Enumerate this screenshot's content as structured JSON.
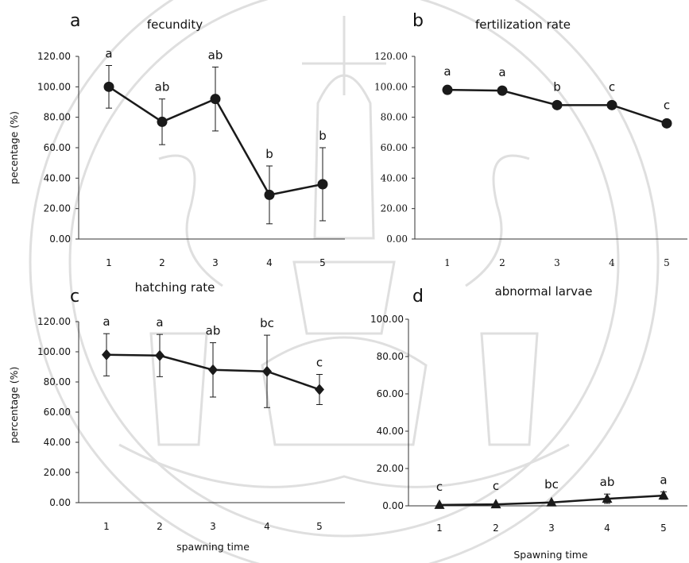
{
  "colors": {
    "line": "#1a1a1a",
    "marker": "#1a1a1a",
    "axis": "#333333",
    "watermark": "#d6d6d6"
  },
  "chart_data": [
    {
      "type": "line",
      "panel_letter": "a",
      "title": "fecundity",
      "ylabel": "pecentage (%)",
      "xlabel": "",
      "ylim": [
        0,
        120
      ],
      "yticks": [
        "120.00",
        "100.00",
        "80.00",
        "60.00",
        "40.00",
        "20.00",
        "0.00"
      ],
      "categories": [
        "1",
        "2",
        "3",
        "4",
        "5"
      ],
      "marker": "circle",
      "series": [
        {
          "values": [
            100,
            77,
            92,
            29,
            36
          ],
          "errors": [
            14,
            15,
            21,
            19,
            24
          ],
          "labels": [
            "a",
            "ab",
            "ab",
            "b",
            "b"
          ]
        }
      ],
      "grid": false
    },
    {
      "type": "line",
      "panel_letter": "b",
      "title": "fertilization rate",
      "ylabel": "",
      "xlabel": "",
      "ylim": [
        0,
        120
      ],
      "yticks": [
        "120.00",
        "100.00",
        "80.00",
        "60.00",
        "40.00",
        "20.00",
        "0.00"
      ],
      "categories": [
        "1",
        "2",
        "3",
        "4",
        "5"
      ],
      "marker": "circle",
      "series": [
        {
          "values": [
            98,
            97.5,
            88,
            88,
            76
          ],
          "errors": [
            0,
            0,
            0,
            0,
            0
          ],
          "labels": [
            "a",
            "a",
            "b",
            "c",
            "c"
          ]
        }
      ],
      "grid": false
    },
    {
      "type": "line",
      "panel_letter": "c",
      "title": "hatching rate",
      "ylabel": "percentage (%)",
      "xlabel": "spawning time",
      "ylim": [
        0,
        120
      ],
      "yticks": [
        "120.00",
        "100.00",
        "80.00",
        "60.00",
        "40.00",
        "20.00",
        "0.00"
      ],
      "categories": [
        "1",
        "2",
        "3",
        "4",
        "5"
      ],
      "marker": "diamond",
      "series": [
        {
          "values": [
            98,
            97.5,
            88,
            87,
            75
          ],
          "errors": [
            14,
            14,
            18,
            24,
            10
          ],
          "labels": [
            "a",
            "a",
            "ab",
            "bc",
            "c"
          ]
        }
      ],
      "grid": false
    },
    {
      "type": "line",
      "panel_letter": "d",
      "title": "abnormal larvae",
      "ylabel": "",
      "xlabel": "Spawning time",
      "ylim": [
        0,
        100
      ],
      "yticks": [
        "100.00",
        "80.00",
        "60.00",
        "40.00",
        "20.00",
        "0.00"
      ],
      "categories": [
        "1",
        "2",
        "3",
        "4",
        "5"
      ],
      "marker": "triangle",
      "series": [
        {
          "values": [
            0.5,
            0.8,
            1.8,
            3.8,
            5.5
          ],
          "errors": [
            0,
            0,
            0,
            2.5,
            2
          ],
          "labels": [
            "c",
            "c",
            "bc",
            "ab",
            "a"
          ]
        }
      ],
      "grid": false
    }
  ]
}
